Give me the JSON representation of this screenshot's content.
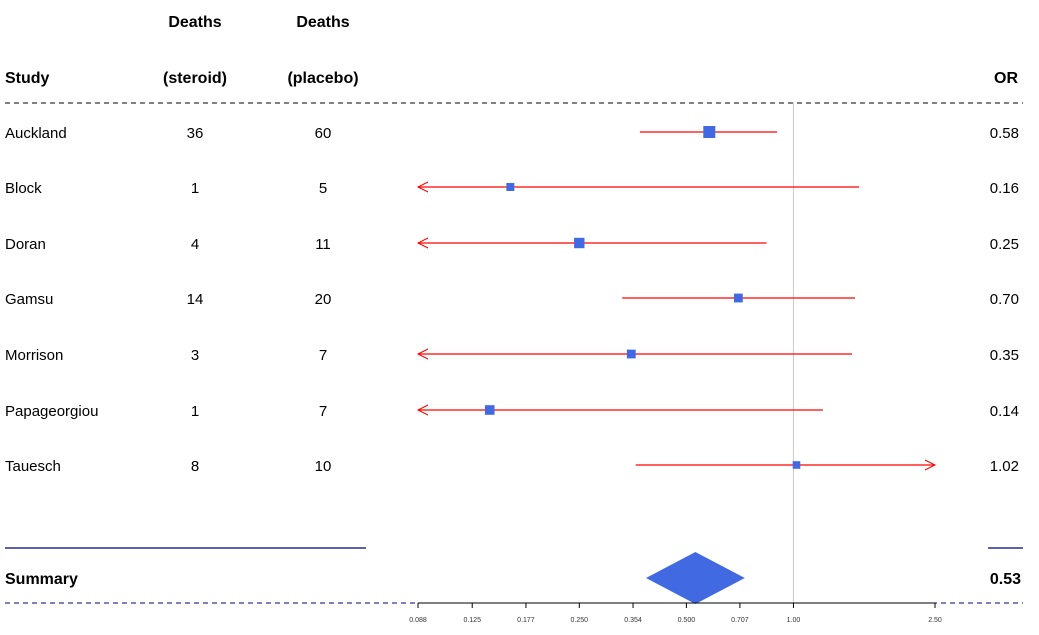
{
  "chart_data": {
    "type": "forest",
    "headers": {
      "study": "Study",
      "deaths_steroid": [
        "Deaths",
        "(steroid)"
      ],
      "deaths_placebo": [
        "Deaths",
        "(placebo)"
      ],
      "or": "OR"
    },
    "rows": [
      {
        "study": "Auckland",
        "steroid": "36",
        "placebo": "60",
        "or_label": "0.58",
        "mean": 0.58,
        "lower": 0.37,
        "upper": 0.9,
        "weight": 1.0
      },
      {
        "study": "Block",
        "steroid": "1",
        "placebo": "5",
        "or_label": "0.16",
        "mean": 0.16,
        "lower": 0.02,
        "upper": 1.53,
        "weight": 0.5
      },
      {
        "study": "Doran",
        "steroid": "4",
        "placebo": "11",
        "or_label": "0.25",
        "mean": 0.25,
        "lower": 0.07,
        "upper": 0.84,
        "weight": 0.8
      },
      {
        "study": "Gamsu",
        "steroid": "14",
        "placebo": "20",
        "or_label": "0.70",
        "mean": 0.7,
        "lower": 0.33,
        "upper": 1.49,
        "weight": 0.6
      },
      {
        "study": "Morrison",
        "steroid": "3",
        "placebo": "7",
        "or_label": "0.35",
        "mean": 0.35,
        "lower": 0.08,
        "upper": 1.46,
        "weight": 0.6
      },
      {
        "study": "Papageorgiou",
        "steroid": "1",
        "placebo": "7",
        "or_label": "0.14",
        "mean": 0.14,
        "lower": 0.02,
        "upper": 1.21,
        "weight": 0.7
      },
      {
        "study": "Tauesch",
        "steroid": "8",
        "placebo": "10",
        "or_label": "1.02",
        "mean": 1.02,
        "lower": 0.36,
        "upper": 2.9,
        "weight": 0.45
      }
    ],
    "summary": {
      "label": "Summary",
      "or_label": "0.53",
      "mean": 0.53,
      "lower": 0.385,
      "upper": 0.73
    },
    "xaxis": {
      "scale": "log",
      "range": [
        0.088,
        2.5
      ],
      "ticks": [
        "0.088",
        "0.125",
        "0.177",
        "0.250",
        "0.354",
        "0.500",
        "0.707",
        "1.00",
        "2.50"
      ],
      "tick_values": [
        0.088,
        0.125,
        0.177,
        0.25,
        0.354,
        0.5,
        0.707,
        1.0,
        2.5
      ]
    },
    "reference_line": 1.0,
    "colors": {
      "box": "#4169E1",
      "line": "#FF0000",
      "summary": "#4169E1",
      "hrz": "#000080",
      "zero": "#cccccc"
    }
  }
}
